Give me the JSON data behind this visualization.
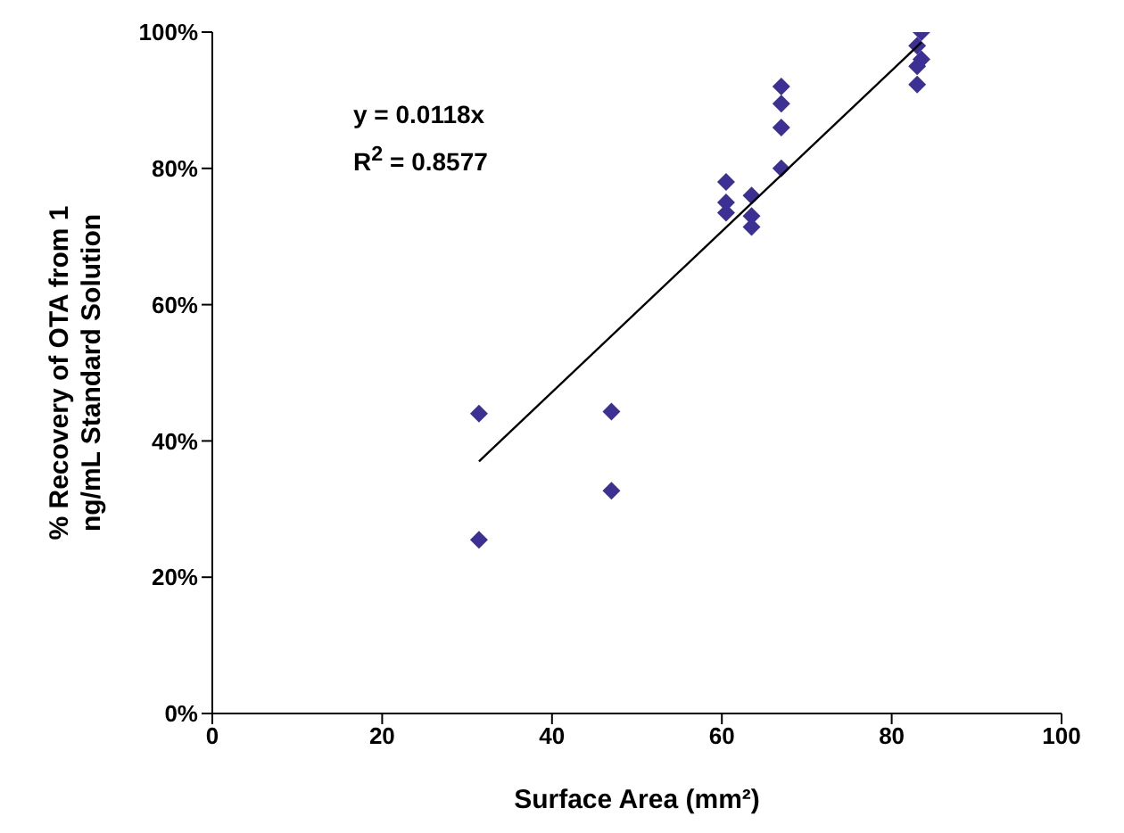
{
  "chart_data": {
    "type": "scatter",
    "xlabel": "Surface Area  (mm²)",
    "ylabel": "% Recovery of OTA from 1 ng/mL Standard Solution",
    "xlim": [
      0,
      100
    ],
    "xticks": [
      0,
      20,
      40,
      60,
      80,
      100
    ],
    "ylim": [
      0,
      100
    ],
    "yticks": [
      {
        "value": 0,
        "label": "0%"
      },
      {
        "value": 20,
        "label": "20%"
      },
      {
        "value": 40,
        "label": "40%"
      },
      {
        "value": 60,
        "label": "60%"
      },
      {
        "value": 80,
        "label": "80%"
      },
      {
        "value": 100,
        "label": "100%"
      }
    ],
    "marker": "diamond",
    "grid": false,
    "legend": false,
    "annotations": [
      "y = 0.0118x",
      "R$^{2}$ = 0.8577"
    ],
    "series": [
      {
        "color": "#3c3094",
        "x": [
          31.4,
          31.4,
          47,
          47,
          60.5,
          60.5,
          60.5,
          63.5,
          63.5,
          63.5,
          67,
          67,
          67,
          67,
          83,
          83,
          83,
          83.5,
          83.5
        ],
        "values": [
          44,
          25.5,
          44.3,
          32.7,
          78,
          75,
          73.5,
          76,
          73,
          71.4,
          92,
          89.5,
          86,
          80,
          98,
          95,
          92.3,
          100,
          96
        ]
      },
      {
        "type": "line",
        "color": "#000000",
        "marker": "none",
        "line_style": "solid",
        "x": [
          31.4,
          83.5
        ],
        "values": [
          37,
          98.5
        ]
      }
    ]
  }
}
